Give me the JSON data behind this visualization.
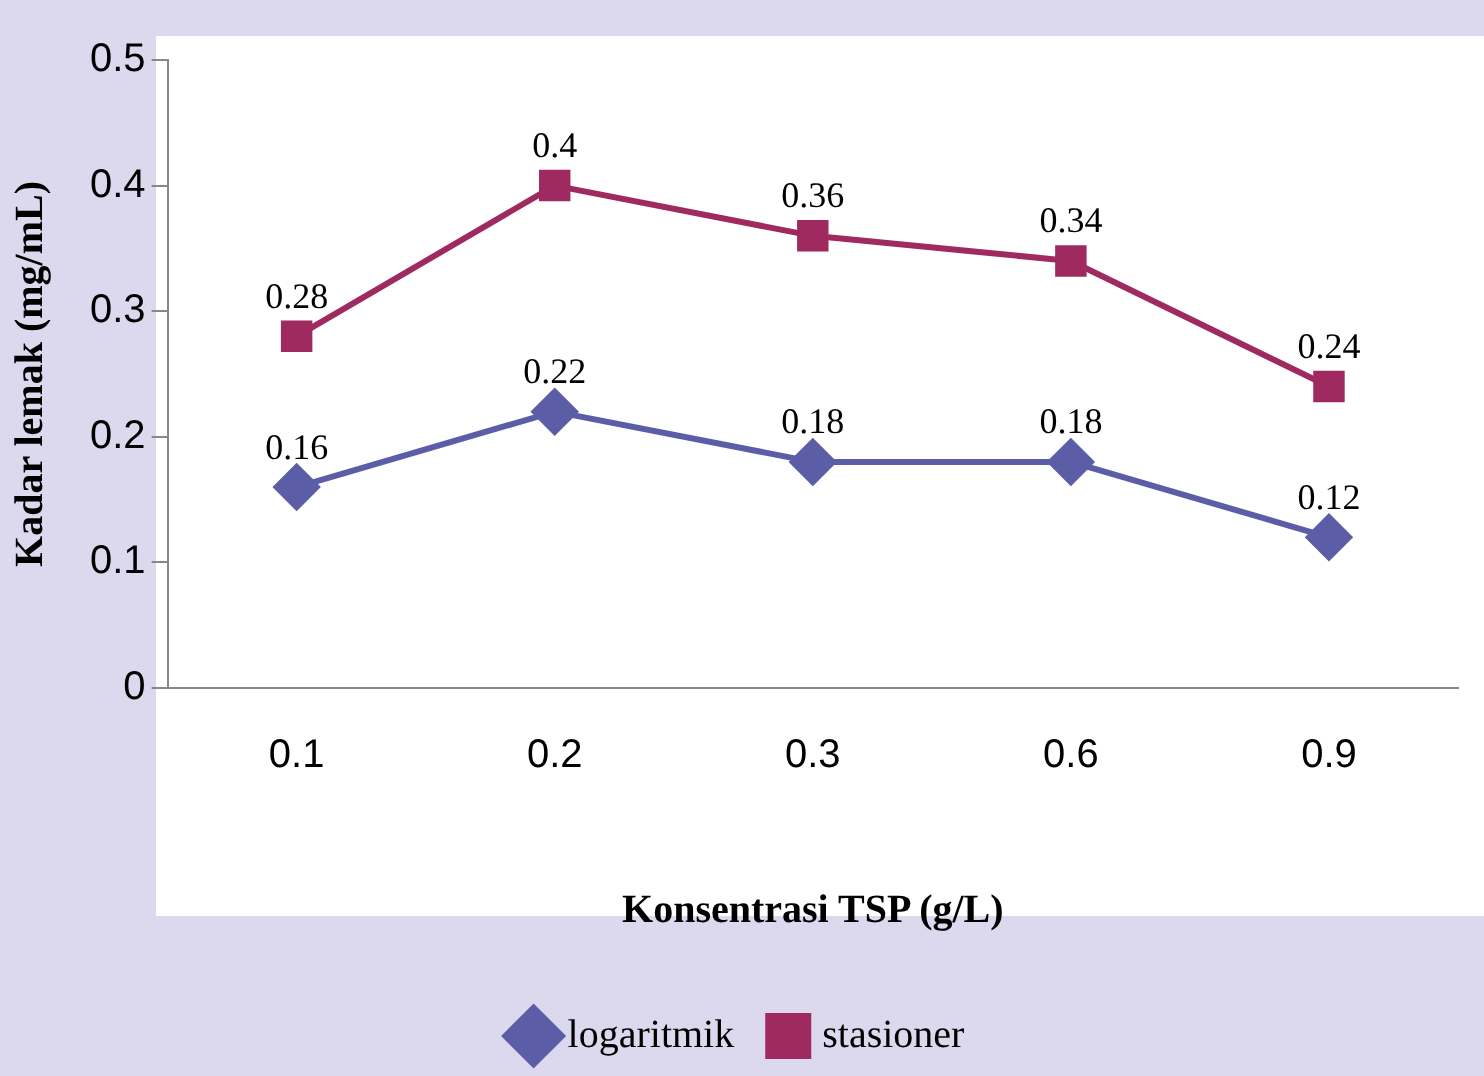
{
  "chart_data": {
    "type": "line",
    "xlabel": "Konsentrasi TSP (g/L)",
    "ylabel": "Kadar lemak (mg/mL)",
    "categories": [
      "0.1",
      "0.2",
      "0.3",
      "0.6",
      "0.9"
    ],
    "series": [
      {
        "name": "logaritmik",
        "color": "#5b5ea6",
        "marker": "diamond",
        "values": [
          0.16,
          0.22,
          0.18,
          0.18,
          0.12
        ]
      },
      {
        "name": "stasioner",
        "color": "#9e2a5f",
        "marker": "square",
        "values": [
          0.28,
          0.4,
          0.36,
          0.34,
          0.24
        ]
      }
    ],
    "ylim": [
      0,
      0.5
    ],
    "yticks": [
      0,
      0.1,
      0.2,
      0.3,
      0.4,
      0.5
    ],
    "grid": false,
    "legend": "bottom",
    "data_labels": true,
    "line_style": "solid"
  }
}
